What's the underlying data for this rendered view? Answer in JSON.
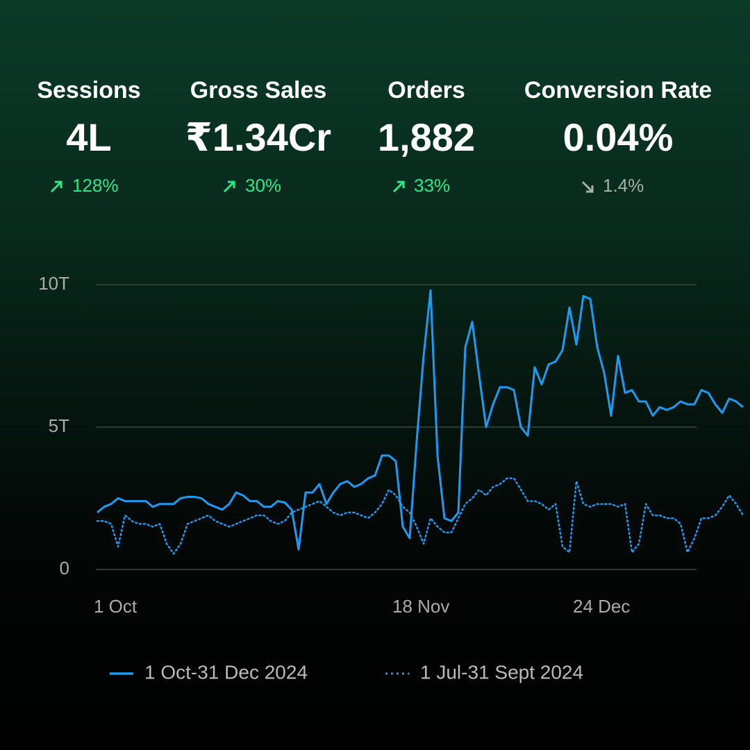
{
  "kpis": [
    {
      "label": "Sessions",
      "value": "4L",
      "change": "128%"
    },
    {
      "label": "Gross Sales",
      "value": "₹1.34Cr",
      "change": "30%"
    },
    {
      "label": "Orders",
      "value": "1,882",
      "change": "33%"
    },
    {
      "label": "Conversion Rate",
      "value": "0.04%",
      "change": "1.4%"
    }
  ],
  "chart_data": {
    "type": "line",
    "categories": [
      "1 Oct",
      null,
      null,
      null,
      null,
      null,
      null,
      null,
      null,
      null,
      null,
      null,
      null,
      null,
      null,
      null,
      null,
      null,
      null,
      null,
      null,
      null,
      null,
      null,
      null,
      null,
      null,
      null,
      null,
      null,
      null,
      null,
      null,
      null,
      null,
      null,
      null,
      null,
      null,
      null,
      null,
      null,
      null,
      "18 Nov",
      null,
      null,
      null,
      null,
      null,
      null,
      null,
      null,
      null,
      null,
      null,
      null,
      null,
      null,
      null,
      null,
      null,
      null,
      null,
      null,
      null,
      null,
      null,
      null,
      null,
      "24 Dec",
      null,
      null,
      null,
      null,
      null,
      null,
      null,
      null,
      null,
      null,
      null,
      null,
      null,
      null,
      null,
      null,
      null,
      null,
      null,
      null,
      null,
      null,
      null,
      null
    ],
    "series": [
      {
        "name": "1 Oct-31 Dec 2024",
        "color": "#1e9bf0",
        "style": "solid",
        "values": [
          2.0,
          2.2,
          2.3,
          2.5,
          2.4,
          2.4,
          2.4,
          2.4,
          2.2,
          2.3,
          2.3,
          2.3,
          2.5,
          2.55,
          2.55,
          2.5,
          2.3,
          2.2,
          2.1,
          2.3,
          2.7,
          2.6,
          2.4,
          2.4,
          2.2,
          2.2,
          2.4,
          2.35,
          2.1,
          0.7,
          2.7,
          2.7,
          3.0,
          2.3,
          2.7,
          3.0,
          3.1,
          2.9,
          3.0,
          3.2,
          3.3,
          4.0,
          4.0,
          3.8,
          1.5,
          1.1,
          4.5,
          7.5,
          9.8,
          4.0,
          1.8,
          1.7,
          2.0,
          7.8,
          8.7,
          6.8,
          5.0,
          5.8,
          6.4,
          6.4,
          6.3,
          5.0,
          4.7,
          7.1,
          6.5,
          7.2,
          7.3,
          7.7,
          9.2,
          7.9,
          9.6,
          9.5,
          7.8,
          6.9,
          5.4,
          7.5,
          6.2,
          6.3,
          5.9,
          5.9,
          5.4,
          5.7,
          5.6,
          5.7,
          5.9,
          5.8,
          5.8,
          6.3,
          6.2,
          5.8,
          5.5,
          6.0,
          5.9,
          5.7
        ]
      },
      {
        "name": "1 Jul-31 Sept 2024",
        "color": "#1e9bf0",
        "style": "dotted",
        "values": [
          1.7,
          1.7,
          1.6,
          0.8,
          1.9,
          1.7,
          1.6,
          1.6,
          1.5,
          1.6,
          0.9,
          0.55,
          0.9,
          1.6,
          1.7,
          1.8,
          1.9,
          1.7,
          1.6,
          1.5,
          1.6,
          1.7,
          1.8,
          1.9,
          1.9,
          1.7,
          1.6,
          1.7,
          2.0,
          2.1,
          2.2,
          2.3,
          2.4,
          2.2,
          2.0,
          1.9,
          2.0,
          2.0,
          1.9,
          1.8,
          2.0,
          2.3,
          2.8,
          2.6,
          2.2,
          2.0,
          1.5,
          0.9,
          1.8,
          1.5,
          1.3,
          1.3,
          1.8,
          2.3,
          2.5,
          2.8,
          2.6,
          2.9,
          3.0,
          3.2,
          3.2,
          2.8,
          2.4,
          2.4,
          2.3,
          2.1,
          2.3,
          0.8,
          0.6,
          3.1,
          2.3,
          2.2,
          2.3,
          2.3,
          2.3,
          2.2,
          2.3,
          0.6,
          0.9,
          2.3,
          1.9,
          1.9,
          1.8,
          1.8,
          1.6,
          0.6,
          1.1,
          1.8,
          1.8,
          1.9,
          2.2,
          2.6,
          2.3,
          1.9
        ]
      }
    ],
    "ylim": [
      0,
      10
    ],
    "yticks": [
      0,
      {
        "value": 5,
        "label": "5T"
      },
      {
        "value": 10,
        "label": "10T"
      }
    ],
    "grid": true
  }
}
